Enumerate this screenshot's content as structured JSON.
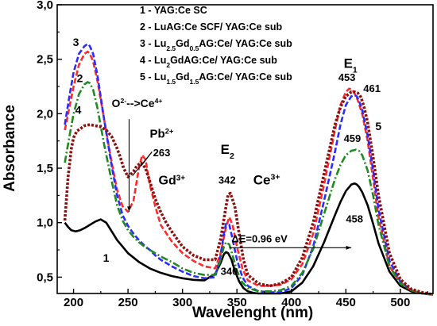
{
  "chart_data": {
    "type": "line",
    "title": "",
    "xlabel": "Wavelenght (nm)",
    "ylabel": "Absorbance",
    "xlim": [
      185,
      530
    ],
    "ylim": [
      0.35,
      3.0
    ],
    "xticks": [
      200,
      250,
      300,
      350,
      400,
      450,
      500
    ],
    "yticks": [
      0.5,
      1.0,
      1.5,
      2.0,
      2.5,
      3.0
    ],
    "xtick_labels": [
      "200",
      "250",
      "300",
      "350",
      "400",
      "450",
      "500"
    ],
    "ytick_labels": [
      "0,5",
      "1,0",
      "1,5",
      "2,0",
      "2,5",
      "3,0"
    ],
    "grid": false,
    "legend_position": "top",
    "series": [
      {
        "id": "s1",
        "name": "1 - YAG:Ce SC",
        "color": "#000000",
        "dash": "solid",
        "x": [
          192,
          195,
          198,
          202,
          206,
          210,
          215,
          220,
          225,
          230,
          235,
          240,
          245,
          250,
          260,
          270,
          280,
          290,
          300,
          310,
          320,
          330,
          335,
          338,
          340,
          342,
          345,
          348,
          352,
          356,
          360,
          365,
          370,
          375,
          380,
          390,
          400,
          410,
          420,
          430,
          440,
          445,
          450,
          455,
          458,
          460,
          462,
          465,
          470,
          475,
          480,
          490,
          500,
          510,
          520,
          530
        ],
        "y": [
          1.0,
          0.96,
          0.93,
          0.92,
          0.93,
          0.95,
          0.98,
          1.01,
          1.03,
          1.0,
          0.92,
          0.84,
          0.78,
          0.72,
          0.64,
          0.58,
          0.54,
          0.51,
          0.49,
          0.475,
          0.47,
          0.53,
          0.63,
          0.71,
          0.73,
          0.72,
          0.66,
          0.56,
          0.46,
          0.4,
          0.37,
          0.355,
          0.35,
          0.35,
          0.35,
          0.35,
          0.37,
          0.45,
          0.6,
          0.82,
          1.07,
          1.19,
          1.29,
          1.35,
          1.36,
          1.35,
          1.33,
          1.28,
          1.16,
          0.99,
          0.81,
          0.55,
          0.42,
          0.37,
          0.35,
          0.34
        ]
      },
      {
        "id": "s2",
        "name": "2 - LuAG:Ce SCF/ YAG:Ce sub",
        "color": "#ff2a2a",
        "dash": "dash",
        "x": [
          192,
          196,
          200,
          205,
          210,
          213,
          215,
          218,
          222,
          228,
          235,
          240,
          245,
          250,
          255,
          260,
          263,
          266,
          270,
          275,
          280,
          290,
          300,
          310,
          320,
          330,
          335,
          340,
          343,
          346,
          350,
          355,
          360,
          370,
          380,
          390,
          400,
          410,
          420,
          430,
          440,
          445,
          450,
          453,
          456,
          460,
          465,
          470,
          475,
          480,
          490,
          500,
          510,
          520,
          530
        ],
        "y": [
          1.85,
          2.05,
          2.25,
          2.45,
          2.55,
          2.57,
          2.55,
          2.48,
          2.3,
          1.95,
          1.55,
          1.3,
          1.15,
          1.1,
          1.2,
          1.5,
          1.62,
          1.58,
          1.35,
          1.15,
          0.98,
          0.83,
          0.72,
          0.65,
          0.6,
          0.58,
          0.72,
          0.96,
          1.05,
          0.98,
          0.78,
          0.58,
          0.47,
          0.42,
          0.42,
          0.43,
          0.48,
          0.62,
          0.9,
          1.35,
          1.85,
          2.08,
          2.2,
          2.23,
          2.22,
          2.15,
          2.0,
          1.75,
          1.4,
          1.05,
          0.6,
          0.45,
          0.38,
          0.35,
          0.34
        ]
      },
      {
        "id": "s3",
        "name": "3 - Lu2.5Gd0.5AG:Ce/ YAG:Ce sub",
        "color": "#2b2bff",
        "dash": "dash",
        "x": [
          192,
          196,
          200,
          205,
          210,
          213,
          215,
          218,
          222,
          228,
          235,
          240,
          245,
          250,
          255,
          260,
          265,
          270,
          275,
          280,
          290,
          300,
          310,
          320,
          330,
          335,
          338,
          340,
          343,
          346,
          350,
          355,
          360,
          370,
          380,
          390,
          400,
          410,
          420,
          430,
          440,
          445,
          450,
          455,
          458,
          460,
          462,
          465,
          470,
          475,
          480,
          490,
          500,
          510,
          520,
          530
        ],
        "y": [
          1.9,
          2.15,
          2.38,
          2.55,
          2.62,
          2.64,
          2.62,
          2.55,
          2.35,
          1.95,
          1.52,
          1.25,
          1.07,
          0.97,
          0.9,
          0.84,
          0.79,
          0.75,
          0.7,
          0.66,
          0.6,
          0.55,
          0.51,
          0.49,
          0.5,
          0.7,
          0.9,
          0.99,
          0.98,
          0.85,
          0.66,
          0.5,
          0.42,
          0.37,
          0.36,
          0.36,
          0.4,
          0.52,
          0.78,
          1.2,
          1.65,
          1.9,
          2.08,
          2.16,
          2.17,
          2.16,
          2.12,
          2.03,
          1.8,
          1.48,
          1.12,
          0.65,
          0.46,
          0.38,
          0.35,
          0.34
        ]
      },
      {
        "id": "s4",
        "name": "4 - Lu2GdAG:Ce/ YAG:Ce sub",
        "color": "#1f8a1f",
        "dash": "dashdot",
        "x": [
          192,
          196,
          200,
          205,
          210,
          213,
          215,
          218,
          222,
          228,
          235,
          240,
          245,
          250,
          255,
          260,
          265,
          270,
          275,
          280,
          290,
          300,
          310,
          320,
          330,
          335,
          338,
          340,
          343,
          346,
          350,
          355,
          360,
          370,
          380,
          390,
          400,
          410,
          420,
          430,
          440,
          445,
          450,
          455,
          459,
          462,
          465,
          470,
          475,
          480,
          490,
          500,
          510,
          520,
          530
        ],
        "y": [
          1.55,
          1.78,
          2.0,
          2.18,
          2.27,
          2.29,
          2.28,
          2.22,
          2.05,
          1.72,
          1.38,
          1.16,
          1.02,
          0.93,
          0.87,
          0.82,
          0.78,
          0.75,
          0.72,
          0.69,
          0.64,
          0.58,
          0.54,
          0.52,
          0.52,
          0.66,
          0.78,
          0.82,
          0.8,
          0.7,
          0.56,
          0.45,
          0.4,
          0.37,
          0.37,
          0.38,
          0.42,
          0.54,
          0.76,
          1.08,
          1.4,
          1.53,
          1.62,
          1.66,
          1.67,
          1.66,
          1.62,
          1.48,
          1.25,
          0.98,
          0.6,
          0.44,
          0.38,
          0.35,
          0.34
        ]
      },
      {
        "id": "s5",
        "name": "5 - Lu1.5Gd1.5AG:Ce/ YAG:Ce sub",
        "color": "#8b1010",
        "dash": "dotted",
        "x": [
          192,
          195,
          198,
          200,
          203,
          206,
          210,
          215,
          220,
          225,
          230,
          235,
          240,
          243,
          246,
          250,
          255,
          258,
          262,
          266,
          270,
          275,
          280,
          285,
          290,
          300,
          310,
          320,
          330,
          335,
          340,
          342,
          344,
          348,
          352,
          356,
          360,
          370,
          380,
          390,
          400,
          410,
          420,
          430,
          440,
          445,
          450,
          455,
          458,
          461,
          464,
          467,
          470,
          475,
          480,
          490,
          500,
          510,
          520,
          530
        ],
        "y": [
          1.02,
          1.42,
          1.68,
          1.78,
          1.84,
          1.86,
          1.89,
          1.9,
          1.89,
          1.88,
          1.85,
          1.79,
          1.68,
          1.6,
          1.5,
          1.42,
          1.47,
          1.52,
          1.55,
          1.5,
          1.38,
          1.22,
          1.1,
          1.0,
          0.92,
          0.78,
          0.7,
          0.66,
          0.66,
          0.85,
          1.15,
          1.26,
          1.27,
          1.15,
          0.9,
          0.66,
          0.52,
          0.44,
          0.42,
          0.44,
          0.5,
          0.68,
          1.0,
          1.45,
          1.9,
          2.06,
          2.16,
          2.2,
          2.2,
          2.19,
          2.15,
          2.05,
          1.92,
          1.6,
          1.25,
          0.72,
          0.48,
          0.39,
          0.36,
          0.34
        ]
      }
    ],
    "legend_entries": [
      {
        "parts": [
          {
            "t": "1 - YAG:Ce SC"
          }
        ]
      },
      {
        "parts": [
          {
            "t": "2 - LuAG:Ce SCF/ YAG:Ce sub"
          }
        ]
      },
      {
        "parts": [
          {
            "t": "3 - Lu"
          },
          {
            "t": "2.5",
            "sub": true
          },
          {
            "t": "Gd"
          },
          {
            "t": "0.5",
            "sub": true
          },
          {
            "t": "AG:Ce/ YAG:Ce sub"
          }
        ]
      },
      {
        "parts": [
          {
            "t": "4 - Lu"
          },
          {
            "t": "2",
            "sub": true
          },
          {
            "t": "GdAG:Ce/ YAG:Ce sub"
          }
        ]
      },
      {
        "parts": [
          {
            "t": "5 - Lu"
          },
          {
            "t": "1.5",
            "sub": true
          },
          {
            "t": "Gd"
          },
          {
            "t": "1.5",
            "sub": true
          },
          {
            "t": "AG:Ce/ YAG:Ce sub"
          }
        ]
      }
    ],
    "annotations": {
      "curve_labels": [
        "3",
        "2",
        "4",
        "1",
        "5"
      ],
      "o_ce": {
        "a": "O",
        "a_sup": "2-",
        "b": "-->Ce",
        "b_sup": "4+"
      },
      "pb": {
        "a": "Pb",
        "a_sup": "2+"
      },
      "pb_wavelength": "263",
      "gd": {
        "a": "Gd",
        "a_sup": "3+"
      },
      "e2": {
        "a": "E",
        "a_sub": "2"
      },
      "e2_peak": "342",
      "e2_peak_low": "340",
      "ce": {
        "a": "Ce",
        "a_sup": "3+"
      },
      "e1": {
        "a": "E",
        "a_sub": "1"
      },
      "e1_peaks": [
        "453",
        "461",
        "459",
        "458"
      ],
      "delta_e": "ΔE=0.96 eV"
    }
  }
}
